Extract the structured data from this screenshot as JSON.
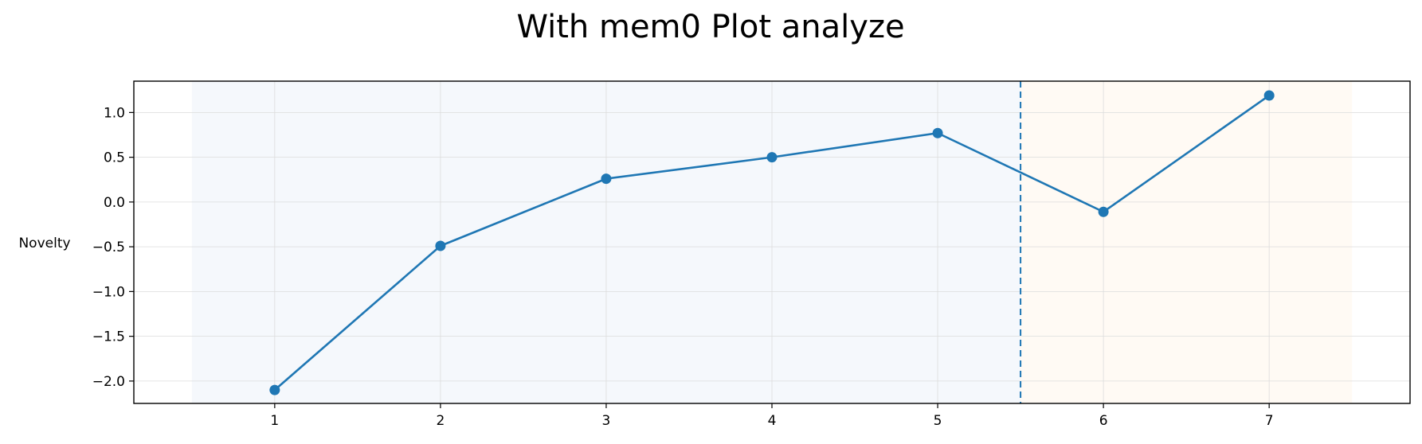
{
  "chart_data": {
    "type": "line",
    "title": "With mem0 Plot analyze",
    "xlabel": "",
    "ylabel": "Novelty",
    "x": [
      1,
      2,
      3,
      4,
      5,
      6,
      7
    ],
    "series": [
      {
        "values": [
          -2.1,
          -0.49,
          0.26,
          0.5,
          0.77,
          -0.11,
          1.19
        ]
      }
    ],
    "xlim": [
      0.15,
      7.85
    ],
    "ylim": [
      -2.25,
      1.35
    ],
    "xticks": [
      "1",
      "2",
      "3",
      "4",
      "5",
      "6",
      "7"
    ],
    "yticks": [
      "1.0",
      "0.5",
      "0.0",
      "−0.5",
      "−1.0",
      "−1.5",
      "−2.0"
    ],
    "ytick_values": [
      1.0,
      0.5,
      0.0,
      -0.5,
      -1.0,
      -1.5,
      -2.0
    ],
    "grid": true,
    "shaded_regions": [
      {
        "x_range": [
          0.5,
          5.5
        ],
        "color": "#f5f8fc"
      },
      {
        "x_range": [
          5.5,
          7.5
        ],
        "color": "#fffaf4"
      }
    ],
    "vline": {
      "x": 5.5,
      "style": "dashed",
      "color": "#1f77b4"
    },
    "line_color": "#1f77b4"
  }
}
